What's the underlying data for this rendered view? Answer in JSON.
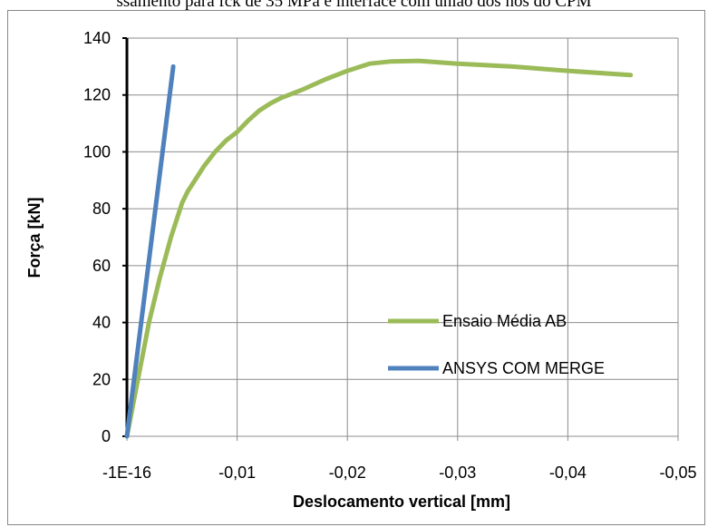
{
  "caption": "ssamento para fck de 35 MPa e interface com união dos nós do CPM",
  "chart_data": {
    "type": "line",
    "title": "",
    "xlabel": "Deslocamento vertical [mm]",
    "ylabel": "Força [kN]",
    "xlim": [
      0,
      -0.05
    ],
    "ylim": [
      0,
      140
    ],
    "x_ticks": [
      0,
      -0.01,
      -0.02,
      -0.03,
      -0.04,
      -0.05
    ],
    "x_tick_labels": [
      "-1E-16",
      "-0,01",
      "-0,02",
      "-0,03",
      "-0,04",
      "-0,05"
    ],
    "y_ticks": [
      0,
      20,
      40,
      60,
      80,
      100,
      120,
      140
    ],
    "y_tick_labels": [
      "0",
      "20",
      "40",
      "60",
      "80",
      "100",
      "120",
      "140"
    ],
    "grid": true,
    "legend_position": "center-right",
    "series": [
      {
        "name": "Ensaio Média AB",
        "color": "#9bbb59",
        "x": [
          0,
          -0.0004,
          -0.0008,
          -0.0012,
          -0.0016,
          -0.002,
          -0.0025,
          -0.003,
          -0.0035,
          -0.004,
          -0.0045,
          -0.005,
          -0.0055,
          -0.006,
          -0.007,
          -0.008,
          -0.009,
          -0.01,
          -0.011,
          -0.012,
          -0.013,
          -0.014,
          -0.016,
          -0.018,
          -0.02,
          -0.022,
          -0.024,
          -0.0265,
          -0.03,
          -0.035,
          -0.04,
          -0.0457
        ],
        "y": [
          0,
          8,
          16,
          24,
          32,
          40,
          48,
          56,
          63,
          70,
          76,
          82,
          86,
          89,
          95,
          100,
          104,
          107,
          111,
          114.5,
          117,
          119,
          122,
          125.5,
          128.5,
          131,
          131.8,
          132,
          131,
          130,
          128.5,
          127
        ]
      },
      {
        "name": "ANSYS COM MERGE",
        "color": "#4f81bd",
        "x": [
          0,
          -0.0042
        ],
        "y": [
          0,
          130
        ]
      }
    ]
  }
}
